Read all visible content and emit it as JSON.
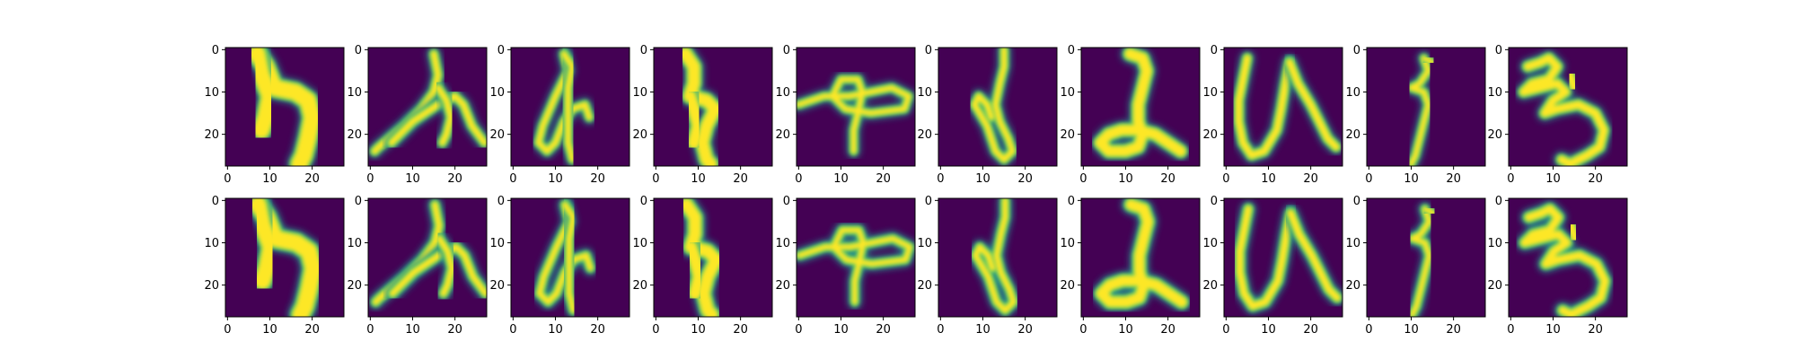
{
  "chart_data": {
    "type": "heatmap",
    "title": "",
    "rows": 2,
    "columns": 10,
    "image_size": [
      28,
      28
    ],
    "colormap": "viridis",
    "colormap_colors": [
      "#440154",
      "#3b528b",
      "#21918c",
      "#5ec962",
      "#fde725"
    ],
    "xlim": [
      0,
      27
    ],
    "ylim": [
      27,
      0
    ],
    "x_tick_labels": [
      "0",
      "10",
      "20"
    ],
    "y_tick_labels": [
      "0",
      "10",
      "20"
    ],
    "panels": [
      {
        "row": 0,
        "col": 0
      },
      {
        "row": 0,
        "col": 1
      },
      {
        "row": 0,
        "col": 2
      },
      {
        "row": 0,
        "col": 3
      },
      {
        "row": 0,
        "col": 4
      },
      {
        "row": 0,
        "col": 5
      },
      {
        "row": 0,
        "col": 6
      },
      {
        "row": 0,
        "col": 7
      },
      {
        "row": 0,
        "col": 8
      },
      {
        "row": 0,
        "col": 9
      },
      {
        "row": 1,
        "col": 0
      },
      {
        "row": 1,
        "col": 1
      },
      {
        "row": 1,
        "col": 2
      },
      {
        "row": 1,
        "col": 3
      },
      {
        "row": 1,
        "col": 4
      },
      {
        "row": 1,
        "col": 5
      },
      {
        "row": 1,
        "col": 6
      },
      {
        "row": 1,
        "col": 7
      },
      {
        "row": 1,
        "col": 8
      },
      {
        "row": 1,
        "col": 9
      }
    ]
  }
}
